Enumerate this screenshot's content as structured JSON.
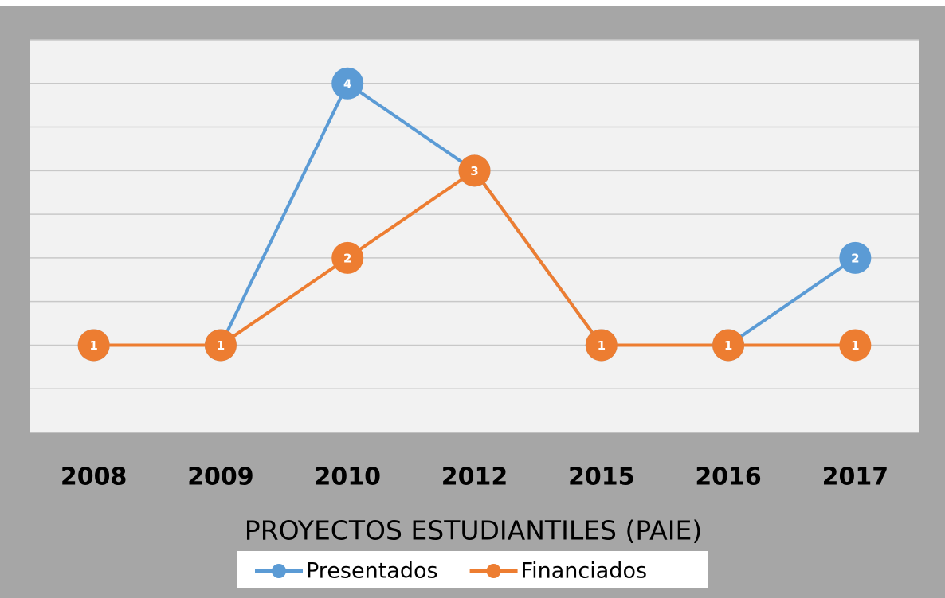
{
  "chart_data": {
    "type": "line",
    "title": "PROYECTOS ESTUDIANTILES (PAIE)",
    "categories": [
      "2008",
      "2009",
      "2010",
      "2012",
      "2015",
      "2016",
      "2017"
    ],
    "series": [
      {
        "name": "Presentados",
        "color": "#5b9bd5",
        "values": [
          1,
          1,
          4,
          3,
          1,
          1,
          2
        ]
      },
      {
        "name": "Financiados",
        "color": "#ed7d31",
        "values": [
          1,
          1,
          2,
          3,
          1,
          1,
          1
        ]
      }
    ],
    "ylim": [
      0,
      4.5
    ],
    "yticks": [
      0,
      0.5,
      1,
      1.5,
      2,
      2.5,
      3,
      3.5,
      4,
      4.5
    ],
    "grid": true,
    "legend": "bottom"
  }
}
